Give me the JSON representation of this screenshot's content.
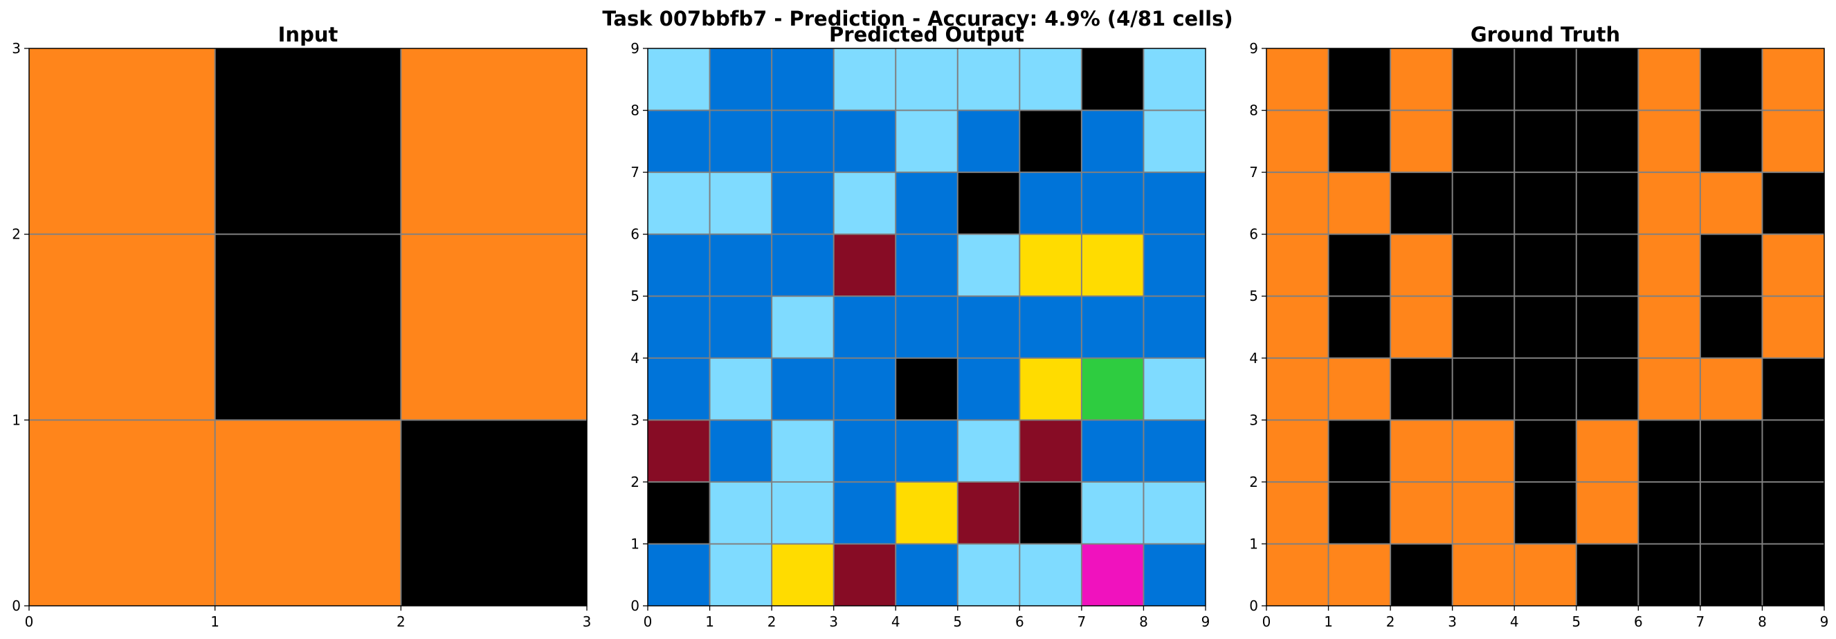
{
  "figure": {
    "title": "Task 007bbfb7 - Prediction - Accuracy: 4.9% (4/81 cells)"
  },
  "palette": {
    "0": "#000000",
    "1": "#0074D9",
    "2": "#FF4136",
    "3": "#2ECC40",
    "4": "#FFDC00",
    "5": "#AAAAAA",
    "6": "#F012BE",
    "7": "#FF851B",
    "8": "#7FDBFF",
    "9": "#870C25"
  },
  "chart_data": [
    {
      "type": "heatmap",
      "title": "Input",
      "rows": 3,
      "cols": 3,
      "xlim": [
        0,
        3
      ],
      "ylim": [
        0,
        3
      ],
      "x_ticks": [
        0,
        1,
        2,
        3
      ],
      "y_ticks": [
        0,
        1,
        2,
        3
      ],
      "grid": true,
      "cells": [
        [
          7,
          0,
          7
        ],
        [
          7,
          0,
          7
        ],
        [
          7,
          7,
          0
        ]
      ]
    },
    {
      "type": "heatmap",
      "title": "Predicted Output",
      "rows": 9,
      "cols": 9,
      "xlim": [
        0,
        9
      ],
      "ylim": [
        0,
        9
      ],
      "x_ticks": [
        0,
        1,
        2,
        3,
        4,
        5,
        6,
        7,
        8,
        9
      ],
      "y_ticks": [
        0,
        1,
        2,
        3,
        4,
        5,
        6,
        7,
        8,
        9
      ],
      "grid": true,
      "cells": [
        [
          8,
          1,
          1,
          8,
          8,
          8,
          8,
          0,
          8
        ],
        [
          1,
          1,
          1,
          1,
          8,
          1,
          0,
          1,
          8
        ],
        [
          8,
          8,
          1,
          8,
          1,
          0,
          1,
          1,
          1
        ],
        [
          1,
          1,
          1,
          9,
          1,
          8,
          4,
          4,
          1
        ],
        [
          1,
          1,
          8,
          1,
          1,
          1,
          1,
          1,
          1
        ],
        [
          1,
          8,
          1,
          1,
          0,
          1,
          4,
          3,
          8
        ],
        [
          9,
          1,
          8,
          1,
          1,
          8,
          9,
          1,
          1
        ],
        [
          0,
          8,
          8,
          1,
          4,
          9,
          0,
          8,
          8
        ],
        [
          1,
          8,
          4,
          9,
          1,
          8,
          8,
          6,
          1
        ]
      ]
    },
    {
      "type": "heatmap",
      "title": "Ground Truth",
      "rows": 9,
      "cols": 9,
      "xlim": [
        0,
        9
      ],
      "ylim": [
        0,
        9
      ],
      "x_ticks": [
        0,
        1,
        2,
        3,
        4,
        5,
        6,
        7,
        8,
        9
      ],
      "y_ticks": [
        0,
        1,
        2,
        3,
        4,
        5,
        6,
        7,
        8,
        9
      ],
      "grid": true,
      "cells": [
        [
          7,
          0,
          7,
          0,
          0,
          0,
          7,
          0,
          7
        ],
        [
          7,
          0,
          7,
          0,
          0,
          0,
          7,
          0,
          7
        ],
        [
          7,
          7,
          0,
          0,
          0,
          0,
          7,
          7,
          0
        ],
        [
          7,
          0,
          7,
          0,
          0,
          0,
          7,
          0,
          7
        ],
        [
          7,
          0,
          7,
          0,
          0,
          0,
          7,
          0,
          7
        ],
        [
          7,
          7,
          0,
          0,
          0,
          0,
          7,
          7,
          0
        ],
        [
          7,
          0,
          7,
          7,
          0,
          7,
          0,
          0,
          0
        ],
        [
          7,
          0,
          7,
          7,
          0,
          7,
          0,
          0,
          0
        ],
        [
          7,
          7,
          0,
          7,
          7,
          0,
          0,
          0,
          0
        ]
      ]
    }
  ]
}
